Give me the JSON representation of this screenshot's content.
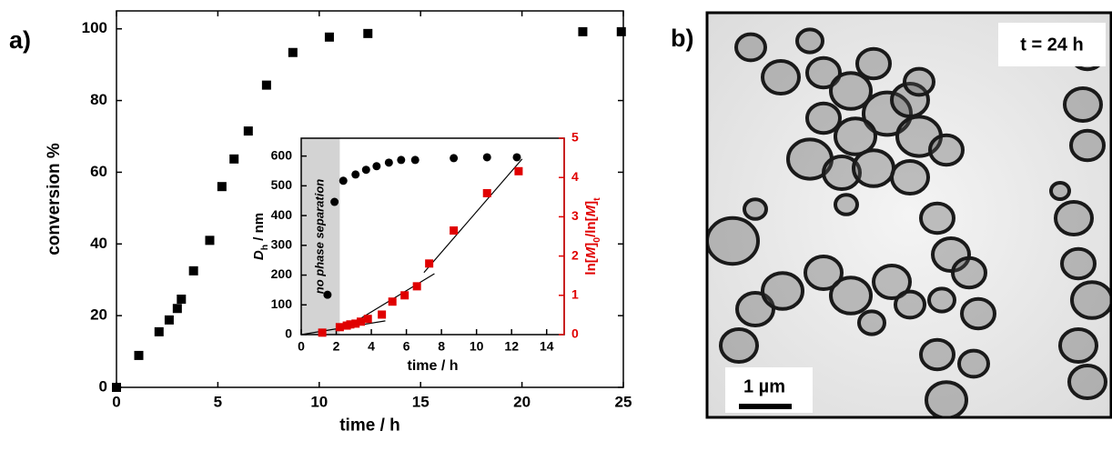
{
  "panel_labels": [
    "a)",
    "b)"
  ],
  "chart_data": [
    {
      "type": "scatter",
      "xlabel": "time / h",
      "ylabel": "conversion %",
      "x": [
        0,
        1.1,
        2.1,
        2.6,
        3.0,
        3.2,
        3.8,
        4.6,
        5.2,
        5.8,
        6.5,
        7.4,
        8.7,
        10.5,
        12.4,
        23.0,
        24.9
      ],
      "values": [
        0,
        8.9,
        15.5,
        18.8,
        22,
        24.6,
        32.5,
        41,
        56,
        63.7,
        71.5,
        84.3,
        93.4,
        97.7,
        98.7,
        99.2,
        99.2
      ],
      "color": "#000000",
      "marker": "square",
      "xlim": [
        0,
        25
      ],
      "xticks": [
        0,
        5,
        10,
        15,
        20,
        25
      ],
      "ylim": [
        0,
        105
      ],
      "yticks": [
        0,
        20,
        40,
        60,
        80,
        100
      ]
    },
    {
      "type": "scatter",
      "xlabel": "time / h",
      "ylabel_parts": [
        {
          "text": "D",
          "italic": true
        },
        {
          "text": "h",
          "sub": true
        },
        {
          "text": " / nm"
        }
      ],
      "y2label_parts": [
        {
          "text": "ln["
        },
        {
          "text": "M",
          "italic": true
        },
        {
          "text": "]"
        },
        {
          "text": "0",
          "sub": true
        },
        {
          "text": "/ln["
        },
        {
          "text": "M",
          "italic": true
        },
        {
          "text": "]"
        },
        {
          "text": "t",
          "sub": true
        }
      ],
      "shaded_region": {
        "xlim": [
          0,
          2.2
        ],
        "label": "no phase separation",
        "color": "#d3d3d3"
      },
      "series": [
        {
          "x": [
            1.5,
            1.9,
            2.4,
            3.1,
            3.7,
            4.3,
            5.0,
            5.7,
            6.5,
            8.7,
            10.6,
            12.3
          ],
          "values": [
            134,
            446,
            517,
            538,
            554,
            566,
            578,
            587,
            587,
            593,
            596,
            596
          ],
          "color": "#000000",
          "marker": "circle"
        },
        {
          "x": [
            1.2,
            2.2,
            2.6,
            2.8,
            3.1,
            3.4,
            3.8,
            4.6,
            5.2,
            5.9,
            6.6,
            7.3,
            8.7,
            10.6,
            12.4
          ],
          "values": [
            0.05,
            0.19,
            0.23,
            0.26,
            0.28,
            0.33,
            0.4,
            0.51,
            0.84,
            1.0,
            1.23,
            1.81,
            2.65,
            3.6,
            4.16
          ],
          "color": "#e00000",
          "marker": "square",
          "axis": "y2"
        }
      ],
      "fits": [
        {
          "x": [
            0,
            4.8
          ],
          "values": [
            0,
            0.35
          ],
          "axis": "y2",
          "color": "#000000"
        },
        {
          "x": [
            2.6,
            7.6
          ],
          "values": [
            0.2,
            1.55
          ],
          "axis": "y2",
          "color": "#000000"
        },
        {
          "x": [
            7.0,
            12.6
          ],
          "values": [
            1.58,
            4.47
          ],
          "axis": "y2",
          "color": "#000000"
        }
      ],
      "xlim": [
        0,
        15
      ],
      "xticks": [
        0,
        2,
        4,
        6,
        8,
        10,
        12,
        14
      ],
      "ylim": [
        0,
        660
      ],
      "yticks": [
        0,
        100,
        200,
        300,
        400,
        500,
        600
      ],
      "y2lim": [
        0,
        5
      ],
      "y2ticks": [
        0,
        1,
        2,
        3,
        4,
        5
      ],
      "y2color": "#e00000"
    }
  ],
  "image_panel": {
    "annotation": "t = 24 h",
    "scale_bar": "1 µm"
  }
}
